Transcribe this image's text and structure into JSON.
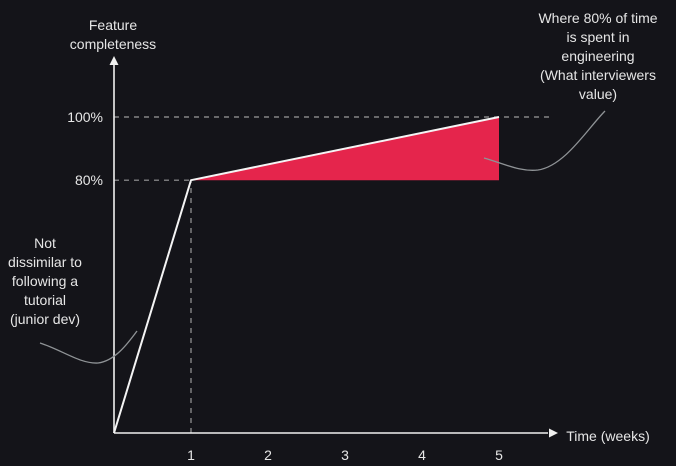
{
  "colors": {
    "background": "#141419",
    "axis": "#f0f0f0",
    "line": "#f4f4f4",
    "fill": "#e5254c",
    "guide": "#9a9a9a",
    "arrow": "#8f9396",
    "text": "#e6e6e6"
  },
  "chart_data": {
    "type": "line",
    "title": "",
    "xlabel": "Time (weeks)",
    "ylabel_lines": [
      "Feature",
      "completeness"
    ],
    "xlim": [
      0,
      6
    ],
    "ylim": [
      0,
      110
    ],
    "x_ticks": [
      1,
      2,
      3,
      4,
      5
    ],
    "x_tick_labels": [
      "1",
      "2",
      "3",
      "4",
      "5"
    ],
    "y_ticks": [
      80,
      100
    ],
    "y_tick_labels": [
      "80%",
      "100%"
    ],
    "grid": false,
    "series": [
      {
        "values_x": [
          0,
          1,
          5
        ],
        "values_y": [
          0,
          80,
          100
        ]
      }
    ],
    "shaded_region": {
      "x_start": 1,
      "x_end": 5,
      "y_bottom": 80,
      "y_top_start": 80,
      "y_top_end": 100
    },
    "guides": [
      {
        "orientation": "horizontal",
        "y": 100,
        "x_from": 0,
        "x_to": 5.7
      },
      {
        "orientation": "horizontal",
        "y": 80,
        "x_from": 0,
        "x_to": 1
      },
      {
        "orientation": "vertical",
        "x": 1,
        "y_from": 0,
        "y_to": 80
      }
    ],
    "annotations": [
      {
        "id": "junior",
        "lines": [
          "Not",
          "dissimilar to",
          "following a",
          "tutorial",
          "(junior dev)"
        ]
      },
      {
        "id": "engineering",
        "lines": [
          "Where 80% of time",
          "is spent in",
          "engineering",
          "(What interviewers",
          "value)"
        ]
      }
    ]
  }
}
